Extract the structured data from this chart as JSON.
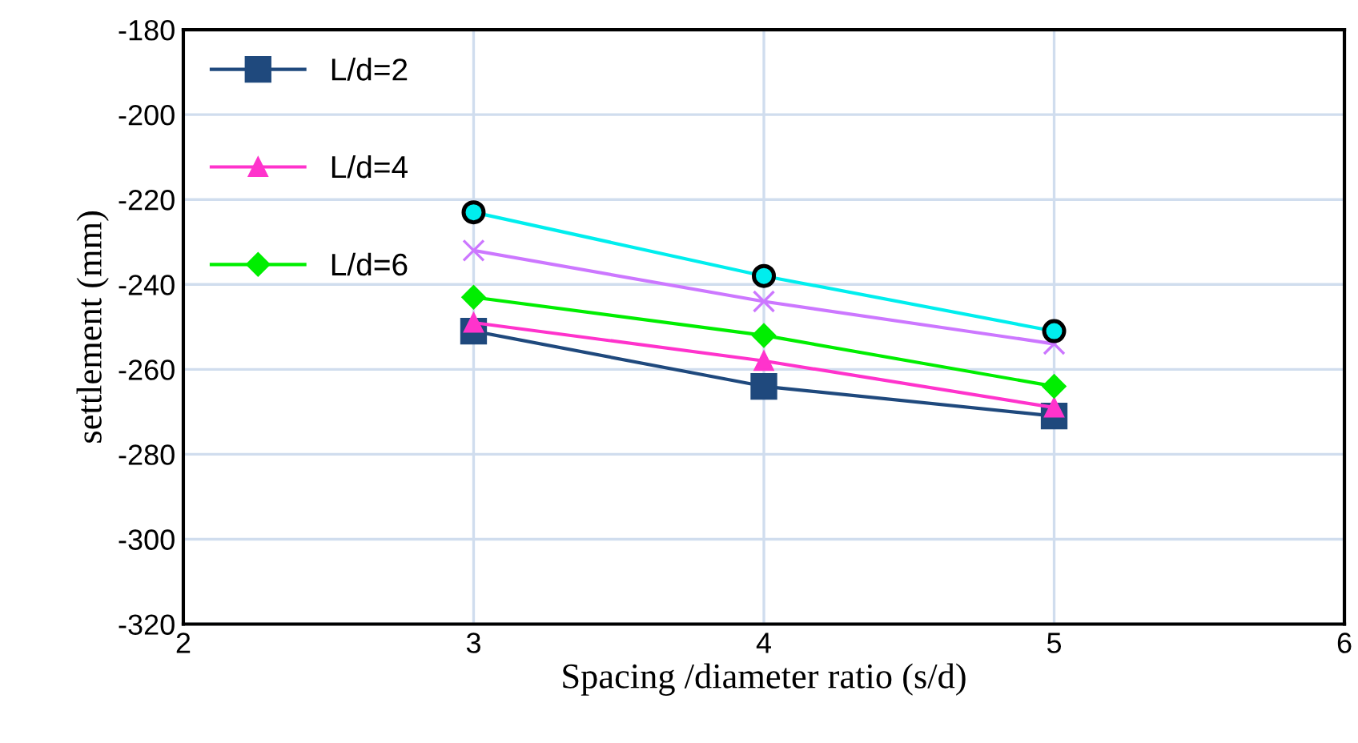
{
  "chart_data": {
    "type": "line",
    "xlabel": "Spacing /diameter ratio (s/d)",
    "ylabel": "settlement (mm)",
    "x": [
      3,
      4,
      5
    ],
    "series": [
      {
        "name": "L/d=2",
        "color": "#1f497d",
        "marker": "square",
        "values": [
          -251,
          -264,
          -271
        ]
      },
      {
        "name": "L/d=4",
        "color": "#ff33cc",
        "marker": "triangle",
        "values": [
          -249,
          -258,
          -269
        ]
      },
      {
        "name": "L/d=6",
        "color": "#00ee00",
        "marker": "diamond",
        "values": [
          -243,
          -252,
          -264
        ]
      },
      {
        "color": "#cc77ff",
        "marker": "cross",
        "values": [
          -232,
          -244,
          -254
        ]
      },
      {
        "color": "#00eeee",
        "marker": "circle",
        "values": [
          -223,
          -238,
          -251
        ]
      }
    ],
    "xlim": [
      2,
      6
    ],
    "xticks": [
      2,
      3,
      4,
      5,
      6
    ],
    "ylim": [
      -320,
      -180
    ],
    "yticks": [
      -320,
      -300,
      -280,
      -260,
      -240,
      -220,
      -200,
      -180
    ],
    "grid": true,
    "legend": "top left",
    "line_style": "solid"
  }
}
